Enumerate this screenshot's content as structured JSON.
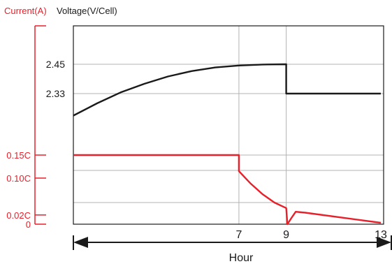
{
  "chart_data": {
    "type": "line",
    "left_axis_label": "Current(A)",
    "right_axis_label": "Voltage(V/Cell)",
    "xlabel": "Hour",
    "x_ticks": [
      7,
      9,
      13
    ],
    "x_range": [
      0,
      13
    ],
    "voltage_ticks": [
      "2.45",
      "2.33"
    ],
    "current_ticks": [
      "0.15C",
      "0.10C",
      "0.02C",
      "0"
    ],
    "grid": true,
    "series": [
      {
        "name": "Voltage",
        "color": "#1a1a1a",
        "values": [
          [
            0,
            2.24
          ],
          [
            1,
            2.29
          ],
          [
            2,
            2.335
          ],
          [
            3,
            2.37
          ],
          [
            4,
            2.4
          ],
          [
            5,
            2.422
          ],
          [
            6,
            2.437
          ],
          [
            7,
            2.445
          ],
          [
            8,
            2.449
          ],
          [
            9,
            2.45
          ],
          [
            9,
            2.33
          ],
          [
            13,
            2.33
          ]
        ]
      },
      {
        "name": "Current",
        "color": "#e8202a",
        "values": [
          [
            0,
            0.15
          ],
          [
            7,
            0.15
          ],
          [
            7,
            0.115
          ],
          [
            7.5,
            0.088
          ],
          [
            8,
            0.065
          ],
          [
            8.5,
            0.047
          ],
          [
            9,
            0.035
          ],
          [
            9.05,
            0.0
          ],
          [
            9.2,
            0.012
          ],
          [
            9.4,
            0.027
          ],
          [
            9.8,
            0.025
          ],
          [
            13,
            0.003
          ]
        ]
      }
    ]
  }
}
